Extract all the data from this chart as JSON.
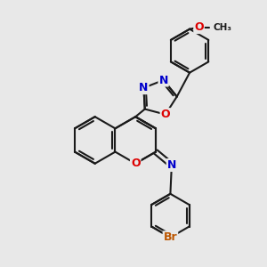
{
  "bg_color": "#e8e8e8",
  "bond_color": "#1a1a1a",
  "bond_width": 1.5,
  "atom_colors": {
    "O": "#dd0000",
    "N": "#0000cc",
    "Br": "#bb5500",
    "C": "#1a1a1a"
  },
  "font_size": 9.0
}
